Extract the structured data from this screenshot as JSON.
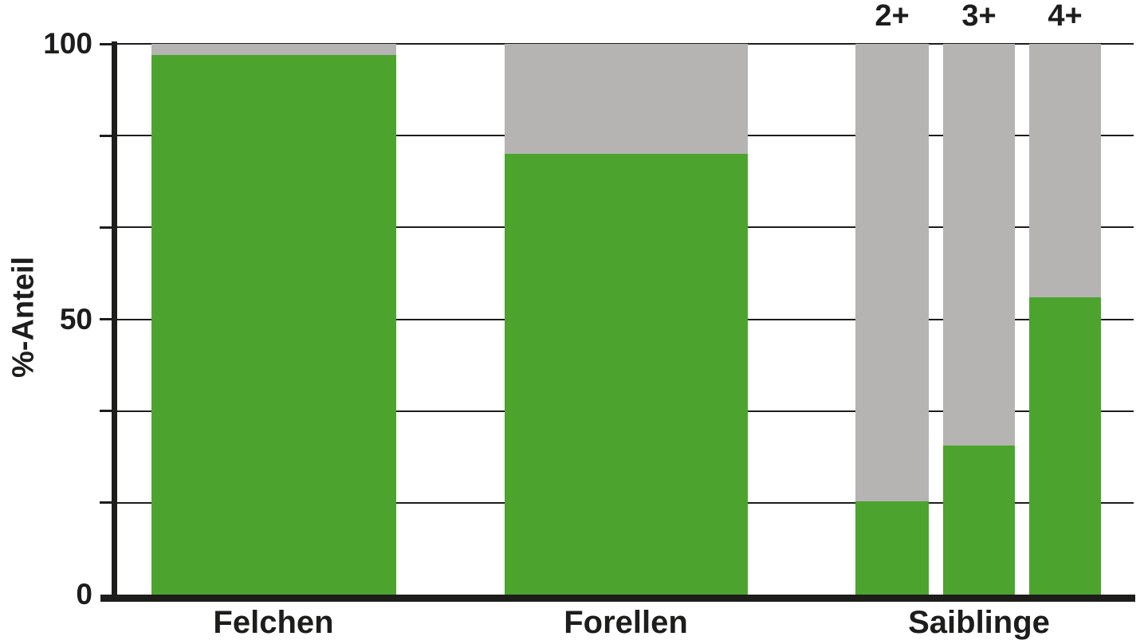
{
  "chart_data": {
    "type": "bar",
    "stacked": true,
    "title": "",
    "ylabel": "%-Anteil",
    "xlabel": "",
    "ylim": [
      0,
      100
    ],
    "legend": "none",
    "grid": "horizontal",
    "gridline_values": [
      100,
      83.33,
      66.67,
      50,
      33.33,
      16.67
    ],
    "yticks": [
      {
        "value": 100,
        "label": "100"
      },
      {
        "value": 50,
        "label": "50"
      },
      {
        "value": 0,
        "label": "0"
      }
    ],
    "categories": [
      "Felchen",
      "Forellen",
      "Saiblinge"
    ],
    "age_class_labels": [
      "2+",
      "3+",
      "4+"
    ],
    "series_colors": {
      "green": "#4CA42E",
      "grey": "#B5B4B3"
    },
    "line_color": "#1d1d1b",
    "bars": [
      {
        "category": "Felchen",
        "age": null,
        "green_pct": 98,
        "grey_pct": 2
      },
      {
        "category": "Forellen",
        "age": null,
        "green_pct": 80,
        "grey_pct": 20
      },
      {
        "category": "Saiblinge",
        "age": "2+",
        "green_pct": 17,
        "grey_pct": 83
      },
      {
        "category": "Saiblinge",
        "age": "3+",
        "green_pct": 27,
        "grey_pct": 73
      },
      {
        "category": "Saiblinge",
        "age": "4+",
        "green_pct": 54,
        "grey_pct": 46
      }
    ]
  }
}
